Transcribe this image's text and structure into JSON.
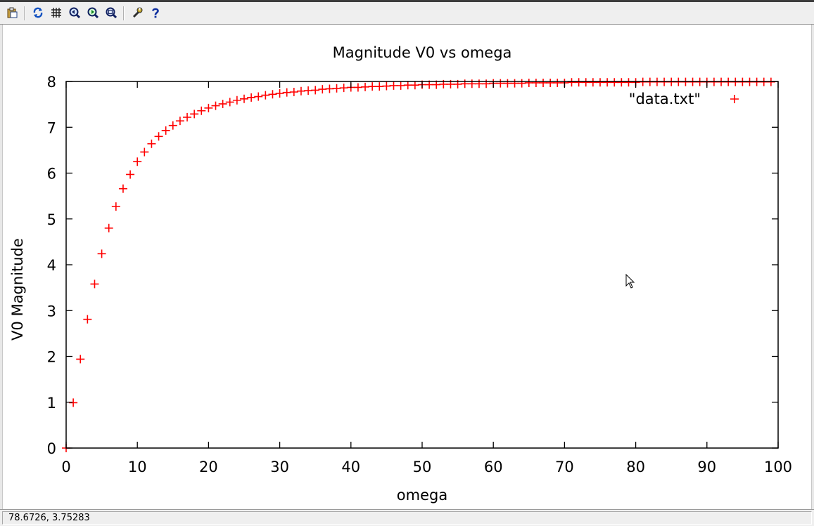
{
  "toolbar": {
    "buttons": [
      {
        "name": "copy-to-clipboard-button",
        "icon": "clipboard-icon"
      },
      {
        "name": "replot-button",
        "icon": "refresh-icon"
      },
      {
        "name": "grid-button",
        "icon": "grid-icon"
      },
      {
        "name": "previous-zoom-button",
        "icon": "zoom-previous-icon"
      },
      {
        "name": "next-zoom-button",
        "icon": "zoom-next-icon"
      },
      {
        "name": "autoscale-button",
        "icon": "zoom-autoscale-icon"
      },
      {
        "name": "configure-button",
        "icon": "wrench-icon"
      },
      {
        "name": "help-button",
        "icon": "help-icon"
      }
    ]
  },
  "status": {
    "coordinates": "78.6726,  3.75283"
  },
  "chart_data": {
    "type": "scatter",
    "title": "Magnitude V0 vs omega",
    "xlabel": "omega",
    "ylabel": "V0 Magnitude",
    "xlim": [
      0,
      100
    ],
    "ylim": [
      0,
      8
    ],
    "xticks": [
      "0",
      "10",
      "20",
      "30",
      "40",
      "50",
      "60",
      "70",
      "80",
      "90",
      "100"
    ],
    "yticks": [
      "0",
      "1",
      "2",
      "3",
      "4",
      "5",
      "6",
      "7",
      "8"
    ],
    "grid": false,
    "legend": {
      "position": "top-right",
      "entries": [
        "\"data.txt\""
      ]
    },
    "marker_color": "#ff0000",
    "series": [
      {
        "name": "\"data.txt\"",
        "marker": "plus",
        "x": [
          0,
          1,
          2,
          3,
          4,
          5,
          6,
          7,
          8,
          9,
          10,
          11,
          12,
          13,
          14,
          15,
          16,
          17,
          18,
          19,
          20,
          21,
          22,
          23,
          24,
          25,
          26,
          27,
          28,
          29,
          30,
          31,
          32,
          33,
          34,
          35,
          36,
          37,
          38,
          39,
          40,
          41,
          42,
          43,
          44,
          45,
          46,
          47,
          48,
          49,
          50,
          51,
          52,
          53,
          54,
          55,
          56,
          57,
          58,
          59,
          60,
          61,
          62,
          63,
          64,
          65,
          66,
          67,
          68,
          69,
          70,
          71,
          72,
          73,
          74,
          75,
          76,
          77,
          78,
          79,
          80,
          81,
          82,
          83,
          84,
          85,
          86,
          87,
          88,
          89,
          90,
          91,
          92,
          93,
          94,
          95,
          96,
          97,
          98,
          99
        ],
        "y": [
          0,
          0.99,
          1.94,
          2.81,
          3.58,
          4.24,
          4.8,
          5.27,
          5.66,
          5.97,
          6.25,
          6.46,
          6.64,
          6.8,
          6.93,
          7.04,
          7.14,
          7.22,
          7.29,
          7.36,
          7.42,
          7.47,
          7.51,
          7.55,
          7.59,
          7.62,
          7.65,
          7.67,
          7.7,
          7.72,
          7.74,
          7.76,
          7.77,
          7.79,
          7.8,
          7.81,
          7.83,
          7.84,
          7.85,
          7.86,
          7.87,
          7.87,
          7.88,
          7.89,
          7.89,
          7.9,
          7.91,
          7.91,
          7.92,
          7.92,
          7.93,
          7.93,
          7.93,
          7.94,
          7.94,
          7.94,
          7.95,
          7.95,
          7.95,
          7.95,
          7.96,
          7.96,
          7.96,
          7.96,
          7.96,
          7.97,
          7.97,
          7.97,
          7.97,
          7.97,
          7.97,
          7.98,
          7.98,
          7.98,
          7.98,
          7.98,
          7.98,
          7.98,
          7.98,
          7.98,
          7.98,
          7.99,
          7.99,
          7.99,
          7.99,
          7.99,
          7.99,
          7.99,
          7.99,
          7.99,
          7.99,
          7.99,
          7.99,
          7.99,
          7.99,
          7.99,
          7.99,
          7.99,
          7.99,
          7.99
        ]
      }
    ]
  }
}
